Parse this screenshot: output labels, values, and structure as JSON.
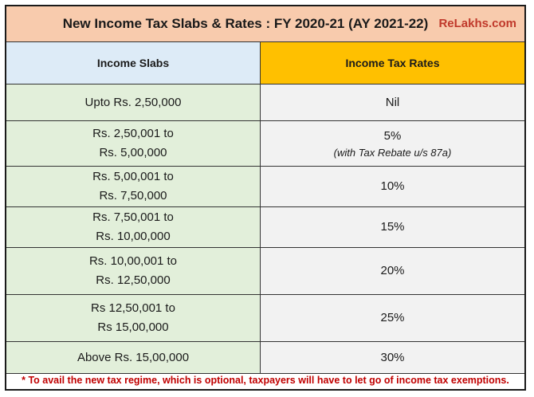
{
  "title": "New Income Tax Slabs & Rates : FY 2020-21 (AY 2021-22)",
  "brand": "ReLakhs.com",
  "headers": {
    "slabs": "Income Slabs",
    "rates": "Income Tax Rates"
  },
  "rows": [
    {
      "slab_line1": "Upto Rs. 2,50,000",
      "slab_line2": "",
      "rate": "Nil",
      "note": ""
    },
    {
      "slab_line1": "Rs. 2,50,001 to",
      "slab_line2": "Rs. 5,00,000",
      "rate": "5%",
      "note": "(with Tax Rebate u/s 87a)"
    },
    {
      "slab_line1": "Rs. 5,00,001 to",
      "slab_line2": "Rs. 7,50,000",
      "rate": "10%",
      "note": ""
    },
    {
      "slab_line1": "Rs. 7,50,001 to",
      "slab_line2": "Rs. 10,00,000",
      "rate": "15%",
      "note": ""
    },
    {
      "slab_line1": "Rs. 10,00,001 to",
      "slab_line2": "Rs. 12,50,000",
      "rate": "20%",
      "note": ""
    },
    {
      "slab_line1": "Rs 12,50,001 to",
      "slab_line2": "Rs 15,00,000",
      "rate": "25%",
      "note": ""
    },
    {
      "slab_line1": "Above Rs. 15,00,000",
      "slab_line2": "",
      "rate": "30%",
      "note": ""
    }
  ],
  "footnote": "* To avail the new tax regime, which is optional, taxpayers will have to let go of income tax exemptions.",
  "colors": {
    "title_bg": "#f8cbad",
    "slab_header_bg": "#ddebf7",
    "rate_header_bg": "#ffc000",
    "slab_cell_bg": "#e2efda",
    "rate_cell_bg": "#f2f2f2",
    "brand": "#c0392b",
    "footnote": "#c00000"
  }
}
